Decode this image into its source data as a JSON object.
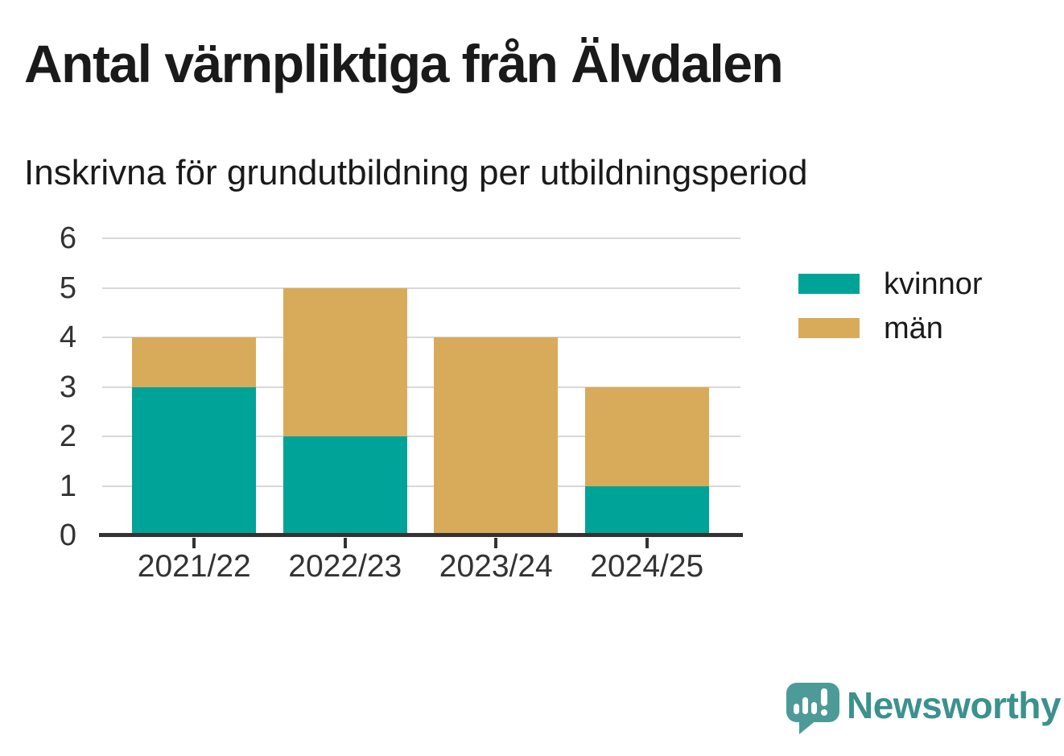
{
  "title": "Antal värnpliktiga från Älvdalen",
  "subtitle": "Inskrivna för grundutbildning per utbildningsperiod",
  "colors": {
    "kvinnor": "#00a398",
    "man": "#d8ab5a",
    "grid": "#d8d8d8",
    "axis": "#333333",
    "text": "#1a1a1a",
    "logo_mark": "#4d9b98",
    "logo_text": "#3b918e"
  },
  "chart_data": {
    "type": "bar",
    "stacked": true,
    "categories": [
      "2021/22",
      "2022/23",
      "2023/24",
      "2024/25"
    ],
    "series": [
      {
        "name": "kvinnor",
        "color": "#00a398",
        "values": [
          3,
          2,
          0,
          1
        ]
      },
      {
        "name": "män",
        "color": "#d8ab5a",
        "values": [
          1,
          3,
          4,
          2
        ]
      }
    ],
    "title": "Antal värnpliktiga från Älvdalen",
    "subtitle": "Inskrivna för grundutbildning per utbildningsperiod",
    "xlabel": "",
    "ylabel": "",
    "ylim": [
      0,
      6
    ],
    "yticks": [
      0,
      1,
      2,
      3,
      4,
      5,
      6
    ],
    "grid": true,
    "legend_position": "right-top"
  },
  "legend": {
    "items": [
      {
        "id": "kvinnor",
        "label": "kvinnor",
        "color": "#00a398"
      },
      {
        "id": "man",
        "label": "män",
        "color": "#d8ab5a"
      }
    ]
  },
  "footer": {
    "brand": "Newsworthy"
  }
}
